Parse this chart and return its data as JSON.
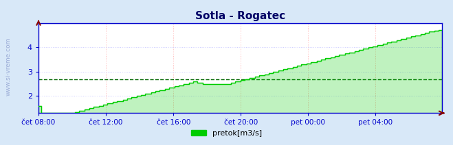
{
  "title": "Sotla - Rogatec",
  "legend_label": "pretok[m3/s]",
  "line_color": "#00cc00",
  "fill_color": "#00cc00",
  "avg_line_value": 2.7,
  "avg_line_color": "#006600",
  "background_color": "#d8e8f8",
  "plot_bg_color": "#ffffff",
  "border_color": "#0000cc",
  "grid_color_v": "#ffbbbb",
  "grid_color_h": "#ccccff",
  "title_color": "#000066",
  "axis_color": "#0000cc",
  "arrow_color": "#880000",
  "watermark": "www.si-vreme.com",
  "x_tick_labels": [
    "čet 08:00",
    "čet 12:00",
    "čet 16:00",
    "čet 20:00",
    "pet 00:00",
    "pet 04:00"
  ],
  "x_tick_positions": [
    0,
    48,
    96,
    144,
    192,
    240
  ],
  "y_ticks": [
    2,
    3,
    4
  ],
  "ylim": [
    1.3,
    5.0
  ],
  "xlim": [
    0,
    287
  ],
  "figsize": [
    6.59,
    2.12
  ],
  "dpi": 100
}
